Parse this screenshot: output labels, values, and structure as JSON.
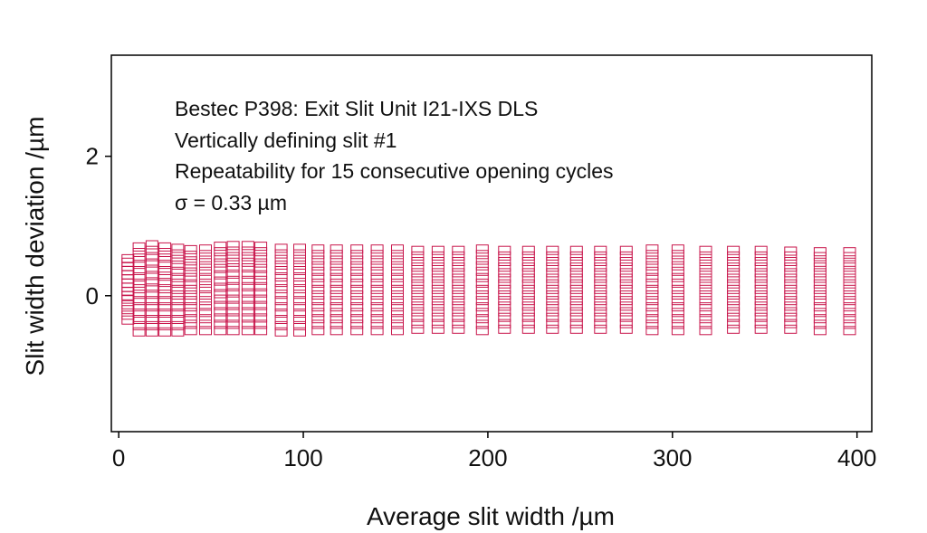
{
  "chart_data": {
    "type": "scatter",
    "marker": "open-square",
    "marker_color": "#c8154b",
    "xlabel": "Average slit width /µm",
    "ylabel": "Slit width deviation /µm",
    "xlim": [
      -4,
      408
    ],
    "ylim": [
      -1.95,
      3.45
    ],
    "xticks": [
      0,
      100,
      200,
      300,
      400
    ],
    "xtick_labels": [
      "0",
      "100",
      "200",
      "300",
      "400"
    ],
    "yticks": [
      0,
      2
    ],
    "ytick_labels": [
      "0",
      "2"
    ],
    "grid": false,
    "annotations": [
      "Bestec P398: Exit Slit Unit I21-IXS DLS",
      "Vertically defining slit #1",
      "Repeatability for 15 consecutive opening cycles",
      "σ = 0.33 µm"
    ],
    "cycles_per_width": 15,
    "series": [
      {
        "points_by_width": [
          {
            "x": 5,
            "y": [
              -0.35,
              -0.28,
              -0.2,
              -0.13,
              -0.05,
              0.0,
              0.06,
              0.12,
              0.18,
              0.24,
              0.3,
              0.36,
              0.42,
              0.48,
              0.53
            ]
          },
          {
            "x": 11,
            "y": [
              -0.52,
              -0.43,
              -0.34,
              -0.25,
              -0.16,
              -0.07,
              0.02,
              0.1,
              0.18,
              0.27,
              0.36,
              0.45,
              0.54,
              0.62,
              0.7
            ]
          },
          {
            "x": 18,
            "y": [
              -0.52,
              -0.43,
              -0.34,
              -0.25,
              -0.16,
              -0.07,
              0.02,
              0.11,
              0.2,
              0.29,
              0.38,
              0.47,
              0.56,
              0.65,
              0.73
            ]
          },
          {
            "x": 25,
            "y": [
              -0.52,
              -0.43,
              -0.34,
              -0.25,
              -0.16,
              -0.07,
              0.02,
              0.1,
              0.19,
              0.28,
              0.36,
              0.45,
              0.54,
              0.62,
              0.7
            ]
          },
          {
            "x": 32,
            "y": [
              -0.52,
              -0.43,
              -0.34,
              -0.25,
              -0.16,
              -0.07,
              0.01,
              0.09,
              0.18,
              0.26,
              0.35,
              0.44,
              0.52,
              0.6,
              0.68
            ]
          },
          {
            "x": 39,
            "y": [
              -0.5,
              -0.41,
              -0.33,
              -0.24,
              -0.16,
              -0.07,
              0.01,
              0.09,
              0.17,
              0.26,
              0.34,
              0.42,
              0.5,
              0.58,
              0.66
            ]
          },
          {
            "x": 47,
            "y": [
              -0.5,
              -0.41,
              -0.33,
              -0.24,
              -0.15,
              -0.07,
              0.01,
              0.1,
              0.18,
              0.26,
              0.35,
              0.43,
              0.51,
              0.59,
              0.67
            ]
          },
          {
            "x": 55,
            "y": [
              -0.5,
              -0.41,
              -0.32,
              -0.23,
              -0.14,
              -0.05,
              0.03,
              0.12,
              0.21,
              0.3,
              0.39,
              0.47,
              0.55,
              0.63,
              0.71
            ]
          },
          {
            "x": 62,
            "y": [
              -0.5,
              -0.41,
              -0.32,
              -0.23,
              -0.14,
              -0.05,
              0.04,
              0.13,
              0.22,
              0.31,
              0.4,
              0.48,
              0.56,
              0.64,
              0.72
            ]
          },
          {
            "x": 70,
            "y": [
              -0.5,
              -0.41,
              -0.32,
              -0.23,
              -0.14,
              -0.05,
              0.04,
              0.13,
              0.22,
              0.31,
              0.4,
              0.48,
              0.56,
              0.64,
              0.72
            ]
          },
          {
            "x": 77,
            "y": [
              -0.5,
              -0.41,
              -0.32,
              -0.23,
              -0.14,
              -0.05,
              0.04,
              0.13,
              0.22,
              0.3,
              0.39,
              0.47,
              0.55,
              0.63,
              0.71
            ]
          },
          {
            "x": 88,
            "y": [
              -0.52,
              -0.43,
              -0.34,
              -0.25,
              -0.16,
              -0.07,
              0.02,
              0.1,
              0.19,
              0.27,
              0.36,
              0.44,
              0.52,
              0.6,
              0.68
            ]
          },
          {
            "x": 98,
            "y": [
              -0.52,
              -0.43,
              -0.34,
              -0.25,
              -0.16,
              -0.07,
              0.02,
              0.1,
              0.19,
              0.27,
              0.36,
              0.44,
              0.52,
              0.6,
              0.68
            ]
          },
          {
            "x": 108,
            "y": [
              -0.5,
              -0.41,
              -0.33,
              -0.24,
              -0.16,
              -0.07,
              0.01,
              0.09,
              0.18,
              0.26,
              0.35,
              0.43,
              0.51,
              0.59,
              0.67
            ]
          },
          {
            "x": 118,
            "y": [
              -0.5,
              -0.41,
              -0.33,
              -0.24,
              -0.16,
              -0.07,
              0.01,
              0.09,
              0.18,
              0.26,
              0.35,
              0.43,
              0.51,
              0.59,
              0.67
            ]
          },
          {
            "x": 129,
            "y": [
              -0.5,
              -0.41,
              -0.33,
              -0.24,
              -0.16,
              -0.07,
              0.01,
              0.09,
              0.18,
              0.26,
              0.35,
              0.43,
              0.51,
              0.59,
              0.67
            ]
          },
          {
            "x": 140,
            "y": [
              -0.5,
              -0.41,
              -0.33,
              -0.24,
              -0.16,
              -0.07,
              0.01,
              0.09,
              0.18,
              0.26,
              0.35,
              0.43,
              0.51,
              0.59,
              0.67
            ]
          },
          {
            "x": 151,
            "y": [
              -0.5,
              -0.41,
              -0.33,
              -0.24,
              -0.16,
              -0.07,
              0.01,
              0.09,
              0.18,
              0.26,
              0.35,
              0.43,
              0.51,
              0.59,
              0.67
            ]
          },
          {
            "x": 162,
            "y": [
              -0.48,
              -0.4,
              -0.31,
              -0.23,
              -0.15,
              -0.07,
              0.01,
              0.09,
              0.17,
              0.25,
              0.33,
              0.41,
              0.49,
              0.57,
              0.65
            ]
          },
          {
            "x": 173,
            "y": [
              -0.48,
              -0.4,
              -0.31,
              -0.23,
              -0.15,
              -0.07,
              0.01,
              0.09,
              0.17,
              0.25,
              0.33,
              0.41,
              0.49,
              0.57,
              0.65
            ]
          },
          {
            "x": 184,
            "y": [
              -0.48,
              -0.4,
              -0.31,
              -0.23,
              -0.15,
              -0.07,
              0.01,
              0.09,
              0.17,
              0.25,
              0.33,
              0.41,
              0.49,
              0.57,
              0.65
            ]
          },
          {
            "x": 197,
            "y": [
              -0.5,
              -0.41,
              -0.33,
              -0.24,
              -0.16,
              -0.07,
              0.01,
              0.09,
              0.18,
              0.26,
              0.35,
              0.43,
              0.51,
              0.59,
              0.67
            ]
          },
          {
            "x": 209,
            "y": [
              -0.48,
              -0.4,
              -0.31,
              -0.23,
              -0.15,
              -0.07,
              0.01,
              0.09,
              0.17,
              0.25,
              0.33,
              0.41,
              0.49,
              0.57,
              0.65
            ]
          },
          {
            "x": 222,
            "y": [
              -0.48,
              -0.4,
              -0.31,
              -0.23,
              -0.15,
              -0.07,
              0.01,
              0.09,
              0.17,
              0.25,
              0.33,
              0.41,
              0.49,
              0.57,
              0.65
            ]
          },
          {
            "x": 235,
            "y": [
              -0.48,
              -0.4,
              -0.31,
              -0.23,
              -0.15,
              -0.07,
              0.01,
              0.09,
              0.17,
              0.25,
              0.33,
              0.41,
              0.49,
              0.57,
              0.65
            ]
          },
          {
            "x": 248,
            "y": [
              -0.48,
              -0.4,
              -0.31,
              -0.23,
              -0.15,
              -0.07,
              0.01,
              0.09,
              0.17,
              0.25,
              0.33,
              0.41,
              0.49,
              0.57,
              0.65
            ]
          },
          {
            "x": 261,
            "y": [
              -0.48,
              -0.4,
              -0.31,
              -0.23,
              -0.15,
              -0.07,
              0.01,
              0.09,
              0.17,
              0.25,
              0.33,
              0.41,
              0.49,
              0.57,
              0.65
            ]
          },
          {
            "x": 275,
            "y": [
              -0.48,
              -0.4,
              -0.31,
              -0.23,
              -0.15,
              -0.07,
              0.01,
              0.09,
              0.17,
              0.25,
              0.33,
              0.41,
              0.49,
              0.57,
              0.65
            ]
          },
          {
            "x": 289,
            "y": [
              -0.5,
              -0.41,
              -0.33,
              -0.24,
              -0.16,
              -0.07,
              0.01,
              0.09,
              0.18,
              0.26,
              0.35,
              0.43,
              0.51,
              0.59,
              0.67
            ]
          },
          {
            "x": 303,
            "y": [
              -0.5,
              -0.41,
              -0.33,
              -0.24,
              -0.16,
              -0.07,
              0.01,
              0.09,
              0.18,
              0.26,
              0.35,
              0.43,
              0.51,
              0.59,
              0.67
            ]
          },
          {
            "x": 318,
            "y": [
              -0.5,
              -0.41,
              -0.33,
              -0.24,
              -0.16,
              -0.07,
              0.01,
              0.09,
              0.17,
              0.25,
              0.33,
              0.41,
              0.49,
              0.57,
              0.65
            ]
          },
          {
            "x": 333,
            "y": [
              -0.48,
              -0.4,
              -0.31,
              -0.23,
              -0.15,
              -0.07,
              0.01,
              0.09,
              0.17,
              0.25,
              0.33,
              0.41,
              0.49,
              0.57,
              0.65
            ]
          },
          {
            "x": 348,
            "y": [
              -0.48,
              -0.4,
              -0.31,
              -0.23,
              -0.15,
              -0.07,
              0.01,
              0.09,
              0.17,
              0.25,
              0.33,
              0.41,
              0.49,
              0.57,
              0.65
            ]
          },
          {
            "x": 364,
            "y": [
              -0.48,
              -0.4,
              -0.31,
              -0.23,
              -0.15,
              -0.07,
              0.01,
              0.09,
              0.17,
              0.25,
              0.33,
              0.41,
              0.49,
              0.57,
              0.64
            ]
          },
          {
            "x": 380,
            "y": [
              -0.5,
              -0.41,
              -0.33,
              -0.24,
              -0.16,
              -0.07,
              0.01,
              0.09,
              0.17,
              0.25,
              0.33,
              0.41,
              0.48,
              0.56,
              0.63
            ]
          },
          {
            "x": 396,
            "y": [
              -0.5,
              -0.41,
              -0.33,
              -0.24,
              -0.16,
              -0.07,
              0.01,
              0.09,
              0.17,
              0.25,
              0.33,
              0.41,
              0.48,
              0.56,
              0.63
            ]
          }
        ]
      }
    ]
  }
}
